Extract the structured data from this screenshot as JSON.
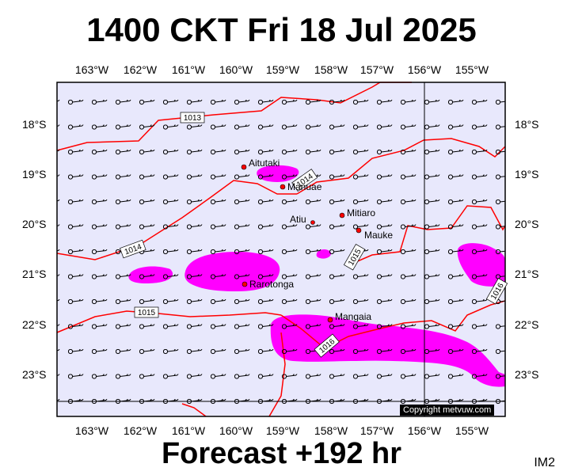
{
  "title": "1400 CKT Fri 18 Jul 2025",
  "footer": "Forecast +192 hr",
  "map_code": "IM2",
  "copyright": "Copyright metvuw.com",
  "longitude_labels": [
    "163°W",
    "162°W",
    "161°W",
    "160°W",
    "159°W",
    "158°W",
    "157°W",
    "156°W",
    "155°W"
  ],
  "latitude_labels": [
    "18°S",
    "19°S",
    "20°S",
    "21°S",
    "22°S",
    "23°S"
  ],
  "isobar_labels": [
    "1013",
    "1014",
    "1014",
    "1015",
    "1015",
    "1016",
    "1016"
  ],
  "places": [
    {
      "name": "Aitutaki",
      "lon": -159.8,
      "lat": -18.9
    },
    {
      "name": "Manuae",
      "lon": -158.95,
      "lat": -19.26
    },
    {
      "name": "Atiu",
      "lon": -158.12,
      "lat": -19.99
    },
    {
      "name": "Mitiaro",
      "lon": -157.72,
      "lat": -19.86
    },
    {
      "name": "Mauke",
      "lon": -157.34,
      "lat": -20.15
    },
    {
      "name": "Rarotonga",
      "lon": -159.78,
      "lat": -21.23
    },
    {
      "name": "Mangaia",
      "lon": -157.9,
      "lat": -21.93
    }
  ],
  "colors": {
    "land_bg": "#e8e8fc",
    "rain": "#ff00ff",
    "isobar": "#ff0000",
    "grid": "#000000",
    "place_dot": "#ff0000"
  }
}
